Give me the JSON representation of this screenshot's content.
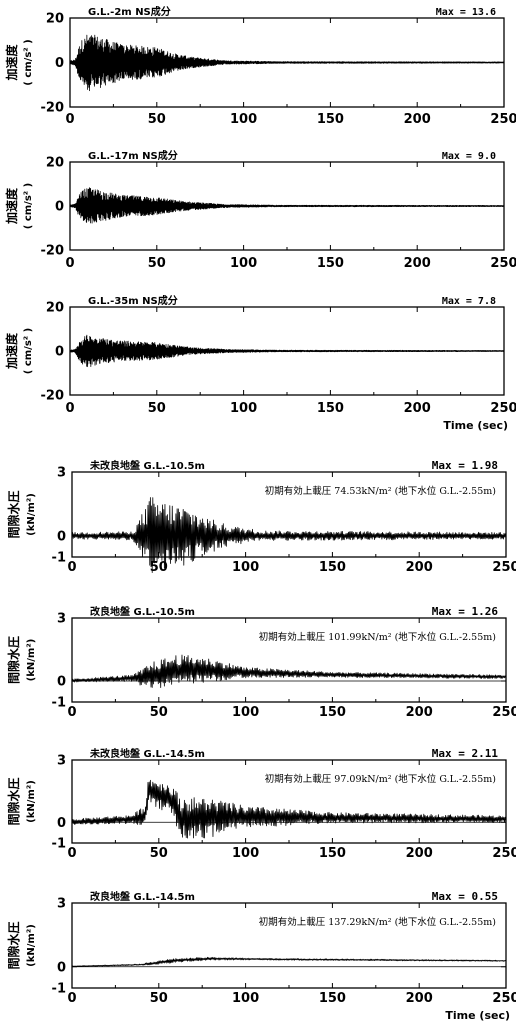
{
  "chart_data": [
    {
      "type": "line",
      "title": "G.L.-2m NS成分",
      "max_label": "Max = 13.6",
      "ylabel_main": "加速度",
      "ylabel_unit": "( cm/s² )",
      "xlabel": "",
      "xlim": [
        0,
        250
      ],
      "ylim": [
        -20,
        20
      ],
      "xticks": [
        0,
        50,
        100,
        150,
        200,
        250
      ],
      "yticks": [
        -20,
        0,
        20
      ],
      "ytick_labels": [
        "-20",
        "0",
        "20"
      ],
      "envelope": {
        "kind": "acceleration",
        "max": 13.6,
        "segments": [
          [
            0,
            0.05
          ],
          [
            3,
            0.1
          ],
          [
            6,
            0.7
          ],
          [
            10,
            0.95
          ],
          [
            15,
            0.9
          ],
          [
            22,
            0.75
          ],
          [
            30,
            0.6
          ],
          [
            40,
            0.55
          ],
          [
            50,
            0.5
          ],
          [
            60,
            0.3
          ],
          [
            70,
            0.18
          ],
          [
            90,
            0.06
          ],
          [
            120,
            0.03
          ],
          [
            250,
            0.02
          ]
        ]
      }
    },
    {
      "type": "line",
      "title": "G.L.-17m NS成分",
      "max_label": "Max = 9.0",
      "ylabel_main": "加速度",
      "ylabel_unit": "( cm/s² )",
      "xlabel": "",
      "xlim": [
        0,
        250
      ],
      "ylim": [
        -20,
        20
      ],
      "xticks": [
        0,
        50,
        100,
        150,
        200,
        250
      ],
      "yticks": [
        -20,
        0,
        20
      ],
      "ytick_labels": [
        "-20",
        "0",
        "20"
      ],
      "envelope": {
        "kind": "acceleration",
        "max": 9.0,
        "segments": [
          [
            0,
            0.05
          ],
          [
            3,
            0.1
          ],
          [
            6,
            0.7
          ],
          [
            10,
            0.95
          ],
          [
            15,
            0.85
          ],
          [
            22,
            0.7
          ],
          [
            30,
            0.55
          ],
          [
            40,
            0.5
          ],
          [
            50,
            0.45
          ],
          [
            60,
            0.3
          ],
          [
            70,
            0.2
          ],
          [
            90,
            0.08
          ],
          [
            120,
            0.04
          ],
          [
            250,
            0.03
          ]
        ]
      }
    },
    {
      "type": "line",
      "title": "G.L.-35m NS成分",
      "max_label": "Max = 7.8",
      "ylabel_main": "加速度",
      "ylabel_unit": "( cm/s² )",
      "xlabel": "Time (sec)",
      "xlim": [
        0,
        250
      ],
      "ylim": [
        -20,
        20
      ],
      "xticks": [
        0,
        50,
        100,
        150,
        200,
        250
      ],
      "yticks": [
        -20,
        0,
        20
      ],
      "ytick_labels": [
        "-20",
        "0",
        "20"
      ],
      "envelope": {
        "kind": "acceleration",
        "max": 7.8,
        "segments": [
          [
            0,
            0.05
          ],
          [
            3,
            0.1
          ],
          [
            6,
            0.7
          ],
          [
            10,
            0.95
          ],
          [
            15,
            0.85
          ],
          [
            22,
            0.7
          ],
          [
            30,
            0.6
          ],
          [
            40,
            0.55
          ],
          [
            50,
            0.5
          ],
          [
            60,
            0.35
          ],
          [
            70,
            0.2
          ],
          [
            90,
            0.1
          ],
          [
            120,
            0.05
          ],
          [
            250,
            0.03
          ]
        ]
      }
    },
    {
      "type": "line",
      "title": "未改良地盤 G.L.-10.5m",
      "max_label": "Max = 1.98",
      "note": "初期有効上載圧 74.53kN/m²  (地下水位 G.L.-2.55m)",
      "ylabel_main": "間隙水圧",
      "ylabel_unit": "(kN/m²)",
      "xlabel": "",
      "xlim": [
        0,
        250
      ],
      "ylim": [
        -1,
        3
      ],
      "xticks": [
        0,
        50,
        100,
        150,
        200,
        250
      ],
      "yticks": [
        -1,
        0,
        3
      ],
      "ytick_labels": [
        "-1",
        "0",
        "3"
      ],
      "envelope": {
        "kind": "pore",
        "max": 1.98,
        "baseline": [
          [
            0,
            0
          ],
          [
            250,
            0
          ]
        ],
        "amplitude": [
          [
            0,
            0.08
          ],
          [
            35,
            0.1
          ],
          [
            40,
            0.5
          ],
          [
            45,
            0.95
          ],
          [
            55,
            0.8
          ],
          [
            65,
            0.7
          ],
          [
            80,
            0.4
          ],
          [
            90,
            0.25
          ],
          [
            110,
            0.12
          ],
          [
            250,
            0.08
          ]
        ]
      }
    },
    {
      "type": "line",
      "title": "改良地盤 G.L.-10.5m",
      "max_label": "Max = 1.26",
      "note": "初期有効上載圧 101.99kN/m²  (地下水位 G.L.-2.55m)",
      "ylabel_main": "間隙水圧",
      "ylabel_unit": "(kN/m²)",
      "xlabel": "",
      "xlim": [
        0,
        250
      ],
      "ylim": [
        -1,
        3
      ],
      "xticks": [
        0,
        50,
        100,
        150,
        200,
        250
      ],
      "yticks": [
        -1,
        0,
        3
      ],
      "ytick_labels": [
        "-1",
        "0",
        "3"
      ],
      "envelope": {
        "kind": "pore",
        "max": 1.26,
        "baseline": [
          [
            0,
            0.02
          ],
          [
            40,
            0.15
          ],
          [
            60,
            0.5
          ],
          [
            70,
            0.55
          ],
          [
            100,
            0.4
          ],
          [
            150,
            0.3
          ],
          [
            250,
            0.2
          ]
        ],
        "amplitude": [
          [
            0,
            0.06
          ],
          [
            35,
            0.12
          ],
          [
            45,
            0.5
          ],
          [
            60,
            0.6
          ],
          [
            80,
            0.45
          ],
          [
            100,
            0.2
          ],
          [
            150,
            0.1
          ],
          [
            250,
            0.07
          ]
        ]
      }
    },
    {
      "type": "line",
      "title": "未改良地盤 G.L.-14.5m",
      "max_label": "Max = 2.11",
      "note": "初期有効上載圧 97.09kN/m²  (地下水位 G.L.-2.55m)",
      "ylabel_main": "間隙水圧",
      "ylabel_unit": "(kN/m²)",
      "xlabel": "",
      "xlim": [
        0,
        250
      ],
      "ylim": [
        -1,
        3
      ],
      "xticks": [
        0,
        50,
        100,
        150,
        200,
        250
      ],
      "yticks": [
        -1,
        0,
        3
      ],
      "ytick_labels": [
        "-1",
        "0",
        "3"
      ],
      "envelope": {
        "kind": "pore",
        "max": 2.11,
        "baseline": [
          [
            0,
            0.02
          ],
          [
            35,
            0.15
          ],
          [
            42,
            0.3
          ],
          [
            44,
            1.55
          ],
          [
            50,
            1.35
          ],
          [
            58,
            1.05
          ],
          [
            62,
            0.2
          ],
          [
            70,
            0.2
          ],
          [
            100,
            0.25
          ],
          [
            250,
            0.15
          ]
        ],
        "amplitude": [
          [
            0,
            0.06
          ],
          [
            35,
            0.1
          ],
          [
            44,
            0.3
          ],
          [
            58,
            0.35
          ],
          [
            62,
            0.5
          ],
          [
            80,
            0.45
          ],
          [
            100,
            0.25
          ],
          [
            150,
            0.12
          ],
          [
            250,
            0.08
          ]
        ]
      }
    },
    {
      "type": "line",
      "title": "改良地盤 G.L.-14.5m",
      "max_label": "Max = 0.55",
      "note": "初期有効上載圧 137.29kN/m²  (地下水位 G.L.-2.55m)",
      "ylabel_main": "間隙水圧",
      "ylabel_unit": "(kN/m²)",
      "xlabel": "Time (sec)",
      "xlim": [
        0,
        250
      ],
      "ylim": [
        -1,
        3
      ],
      "xticks": [
        0,
        50,
        100,
        150,
        200,
        250
      ],
      "yticks": [
        -1,
        0,
        3
      ],
      "ytick_labels": [
        "-1",
        "0",
        "3"
      ],
      "envelope": {
        "kind": "pore",
        "max": 0.55,
        "baseline": [
          [
            0,
            0.02
          ],
          [
            40,
            0.1
          ],
          [
            60,
            0.3
          ],
          [
            80,
            0.38
          ],
          [
            120,
            0.35
          ],
          [
            250,
            0.28
          ]
        ],
        "amplitude": [
          [
            0,
            0.03
          ],
          [
            40,
            0.06
          ],
          [
            50,
            0.18
          ],
          [
            70,
            0.15
          ],
          [
            100,
            0.08
          ],
          [
            250,
            0.05
          ]
        ]
      }
    }
  ]
}
